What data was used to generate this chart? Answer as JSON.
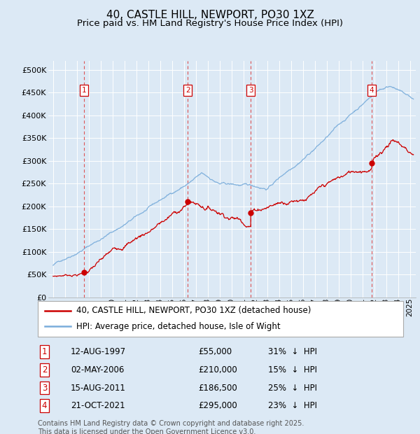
{
  "title": "40, CASTLE HILL, NEWPORT, PO30 1XZ",
  "subtitle": "Price paid vs. HM Land Registry's House Price Index (HPI)",
  "ylim": [
    0,
    520000
  ],
  "yticks": [
    0,
    50000,
    100000,
    150000,
    200000,
    250000,
    300000,
    350000,
    400000,
    450000,
    500000
  ],
  "ytick_labels": [
    "£0",
    "£50K",
    "£100K",
    "£150K",
    "£200K",
    "£250K",
    "£300K",
    "£350K",
    "£400K",
    "£450K",
    "£500K"
  ],
  "xlim_start": 1994.6,
  "xlim_end": 2025.5,
  "background_color": "#dce9f5",
  "grid_color": "#ffffff",
  "sale_color": "#cc0000",
  "hpi_color": "#7aaddb",
  "vline_color": "#dd4444",
  "transactions": [
    {
      "num": 1,
      "date_label": "12-AUG-1997",
      "date_x": 1997.614,
      "price": 55000,
      "pct": "31%",
      "direction": "↓"
    },
    {
      "num": 2,
      "date_label": "02-MAY-2006",
      "date_x": 2006.336,
      "price": 210000,
      "pct": "15%",
      "direction": "↓"
    },
    {
      "num": 3,
      "date_label": "15-AUG-2011",
      "date_x": 2011.621,
      "price": 186500,
      "pct": "25%",
      "direction": "↓"
    },
    {
      "num": 4,
      "date_label": "21-OCT-2021",
      "date_x": 2021.804,
      "price": 295000,
      "pct": "23%",
      "direction": "↓"
    }
  ],
  "legend_sale_label": "40, CASTLE HILL, NEWPORT, PO30 1XZ (detached house)",
  "legend_hpi_label": "HPI: Average price, detached house, Isle of Wight",
  "footer": "Contains HM Land Registry data © Crown copyright and database right 2025.\nThis data is licensed under the Open Government Licence v3.0.",
  "title_fontsize": 11,
  "subtitle_fontsize": 9.5,
  "tick_fontsize": 8,
  "legend_fontsize": 8.5,
  "table_fontsize": 8.5,
  "footer_fontsize": 7
}
